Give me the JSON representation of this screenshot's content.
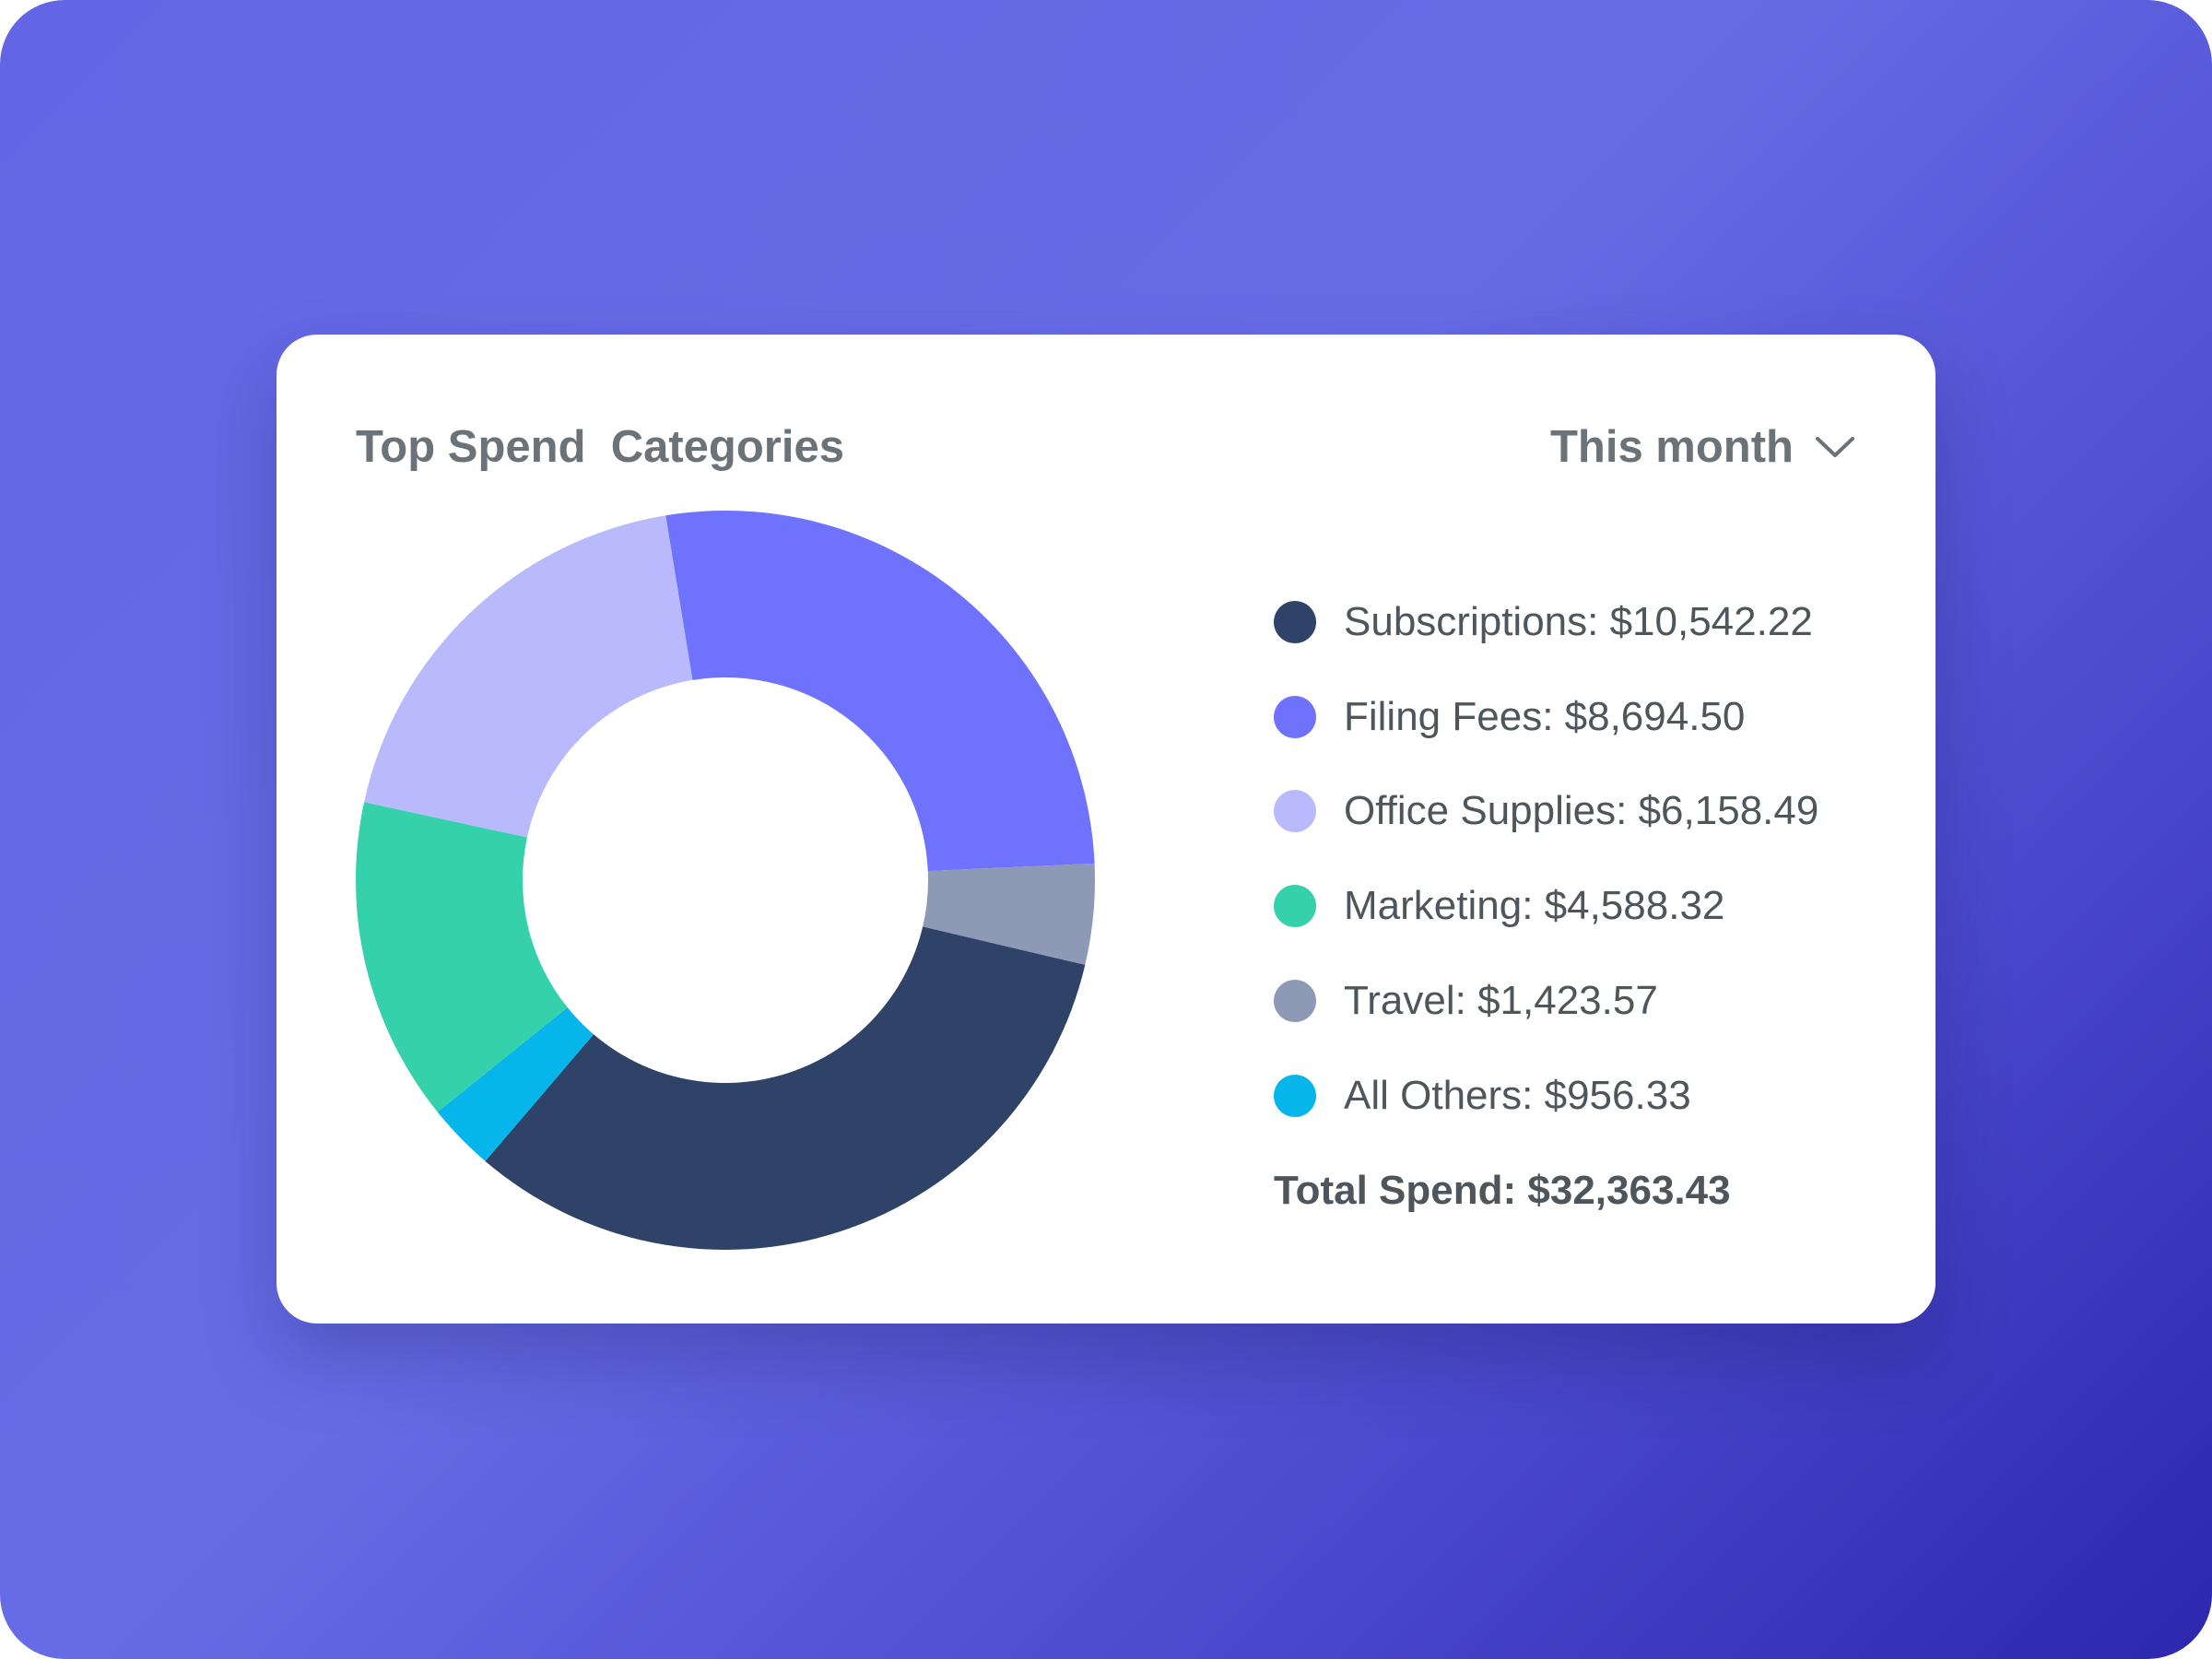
{
  "header": {
    "title": "Top Spend  Categories",
    "period": "This month",
    "period_icon": "chevron-down-icon"
  },
  "chart_data": {
    "type": "pie",
    "variant": "donut",
    "title": "Top Spend  Categories",
    "series": [
      {
        "name": "Subscriptions",
        "value": 10542.22,
        "label": "Subscriptions: $10,542.22",
        "color": "#2f4369"
      },
      {
        "name": "Filing Fees",
        "value": 8694.5,
        "label": "Filing Fees: $8,694.50",
        "color": "#6e72fd"
      },
      {
        "name": "Office Supplies",
        "value": 6158.49,
        "label": "Office Supplies: $6,158.49",
        "color": "#b8bafd"
      },
      {
        "name": "Marketing",
        "value": 4588.32,
        "label": "Marketing: $4,588.32",
        "color": "#34d1aa"
      },
      {
        "name": "Travel",
        "value": 1423.57,
        "label": "Travel: $1,423.57",
        "color": "#8e99b5"
      },
      {
        "name": "All Others",
        "value": 956.33,
        "label": "All Others: $956.33",
        "color": "#06b6eb"
      }
    ],
    "slice_order_clockwise": [
      "Filing Fees",
      "Travel",
      "Subscriptions",
      "All Others",
      "Marketing",
      "Office Supplies"
    ],
    "legend": "right",
    "total_label": "Total Spend: $32,363.43"
  }
}
